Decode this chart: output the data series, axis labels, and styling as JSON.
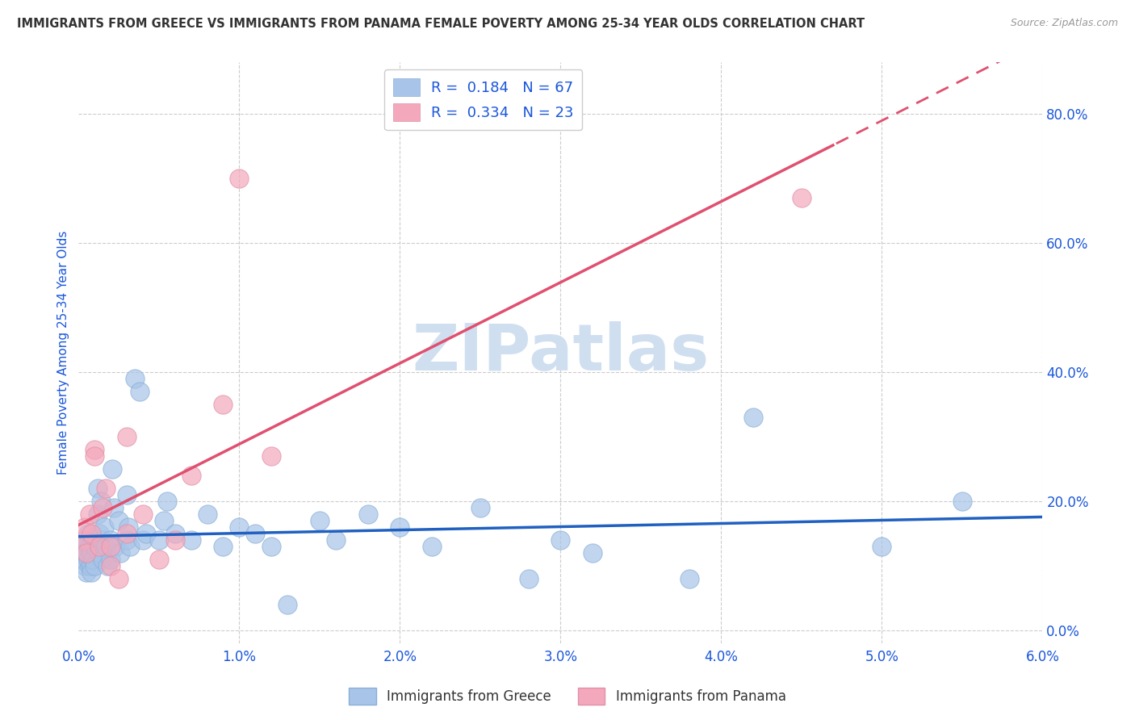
{
  "title": "IMMIGRANTS FROM GREECE VS IMMIGRANTS FROM PANAMA FEMALE POVERTY AMONG 25-34 YEAR OLDS CORRELATION CHART",
  "source": "Source: ZipAtlas.com",
  "ylabel": "Female Poverty Among 25-34 Year Olds",
  "xlim": [
    0.0,
    0.06
  ],
  "ylim": [
    -0.02,
    0.88
  ],
  "xticks": [
    0.0,
    0.01,
    0.02,
    0.03,
    0.04,
    0.05,
    0.06
  ],
  "xticklabels": [
    "0.0%",
    "1.0%",
    "2.0%",
    "3.0%",
    "4.0%",
    "5.0%",
    "6.0%"
  ],
  "yticks_right": [
    0.0,
    0.2,
    0.4,
    0.6,
    0.8
  ],
  "yticklabels_right": [
    "0.0%",
    "20.0%",
    "40.0%",
    "60.0%",
    "80.0%"
  ],
  "greece_color": "#a8c4e8",
  "panama_color": "#f4a8bc",
  "greece_line_color": "#2060c0",
  "panama_line_color": "#e05070",
  "R_greece": 0.184,
  "N_greece": 67,
  "R_panama": 0.334,
  "N_panama": 23,
  "watermark": "ZIPatlas",
  "watermark_color": "#d0dff0",
  "greece_scatter_x": [
    0.0002,
    0.0002,
    0.0004,
    0.0004,
    0.0005,
    0.0005,
    0.0005,
    0.0006,
    0.0006,
    0.0007,
    0.0007,
    0.0008,
    0.0008,
    0.0008,
    0.0009,
    0.0009,
    0.001,
    0.001,
    0.0012,
    0.0012,
    0.0013,
    0.0013,
    0.0014,
    0.0015,
    0.0015,
    0.0016,
    0.0017,
    0.0018,
    0.002,
    0.002,
    0.0021,
    0.0022,
    0.0023,
    0.0025,
    0.0026,
    0.003,
    0.003,
    0.0031,
    0.0032,
    0.0035,
    0.0038,
    0.004,
    0.0042,
    0.005,
    0.0053,
    0.0055,
    0.006,
    0.007,
    0.008,
    0.009,
    0.01,
    0.011,
    0.012,
    0.013,
    0.015,
    0.016,
    0.018,
    0.02,
    0.022,
    0.025,
    0.028,
    0.03,
    0.032,
    0.038,
    0.042,
    0.05,
    0.055
  ],
  "greece_scatter_y": [
    0.13,
    0.11,
    0.12,
    0.1,
    0.14,
    0.12,
    0.09,
    0.15,
    0.11,
    0.13,
    0.1,
    0.12,
    0.1,
    0.09,
    0.14,
    0.11,
    0.13,
    0.1,
    0.22,
    0.18,
    0.15,
    0.12,
    0.2,
    0.14,
    0.11,
    0.16,
    0.13,
    0.1,
    0.14,
    0.11,
    0.25,
    0.19,
    0.13,
    0.17,
    0.12,
    0.21,
    0.14,
    0.16,
    0.13,
    0.39,
    0.37,
    0.14,
    0.15,
    0.14,
    0.17,
    0.2,
    0.15,
    0.14,
    0.18,
    0.13,
    0.16,
    0.15,
    0.13,
    0.04,
    0.17,
    0.14,
    0.18,
    0.16,
    0.13,
    0.19,
    0.08,
    0.14,
    0.12,
    0.08,
    0.33,
    0.13,
    0.2
  ],
  "panama_scatter_x": [
    0.0003,
    0.0004,
    0.0005,
    0.0007,
    0.0008,
    0.001,
    0.001,
    0.0013,
    0.0015,
    0.0017,
    0.002,
    0.002,
    0.0025,
    0.003,
    0.003,
    0.004,
    0.005,
    0.006,
    0.007,
    0.009,
    0.01,
    0.012,
    0.045
  ],
  "panama_scatter_y": [
    0.14,
    0.16,
    0.12,
    0.18,
    0.15,
    0.28,
    0.27,
    0.13,
    0.19,
    0.22,
    0.13,
    0.1,
    0.08,
    0.3,
    0.15,
    0.18,
    0.11,
    0.14,
    0.24,
    0.35,
    0.7,
    0.27,
    0.67
  ],
  "background_color": "#ffffff",
  "grid_color": "#cccccc",
  "title_color": "#333333",
  "blue_color": "#1a56db",
  "tick_color": "#1a56db"
}
